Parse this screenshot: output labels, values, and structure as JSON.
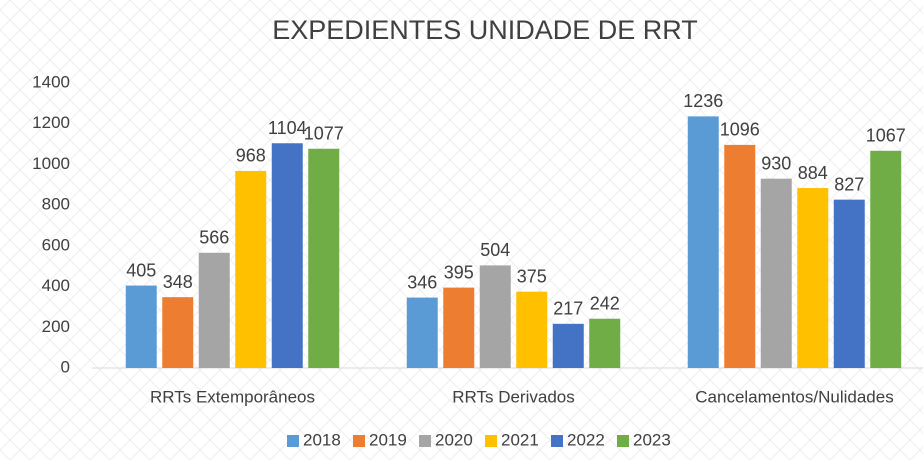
{
  "chart_data": {
    "type": "bar",
    "title": "EXPEDIENTES UNIDADE DE RRT",
    "categories": [
      "RRTs Extemporâneos",
      "RRTs Derivados",
      "Cancelamentos/Nulidades"
    ],
    "series": [
      {
        "name": "2018",
        "color": "#5b9bd5",
        "values": [
          405,
          346,
          1236
        ]
      },
      {
        "name": "2019",
        "color": "#ed7d31",
        "values": [
          348,
          395,
          1096
        ]
      },
      {
        "name": "2020",
        "color": "#a5a5a5",
        "values": [
          566,
          504,
          930
        ]
      },
      {
        "name": "2021",
        "color": "#ffc000",
        "values": [
          968,
          375,
          884
        ]
      },
      {
        "name": "2022",
        "color": "#4472c4",
        "values": [
          1104,
          217,
          827
        ]
      },
      {
        "name": "2023",
        "color": "#70ad47",
        "values": [
          1077,
          242,
          1067
        ]
      }
    ],
    "ylim": [
      0,
      1400
    ],
    "yticks": [
      0,
      200,
      400,
      600,
      800,
      1000,
      1200,
      1400
    ],
    "grid": false,
    "legend": "bottom"
  }
}
